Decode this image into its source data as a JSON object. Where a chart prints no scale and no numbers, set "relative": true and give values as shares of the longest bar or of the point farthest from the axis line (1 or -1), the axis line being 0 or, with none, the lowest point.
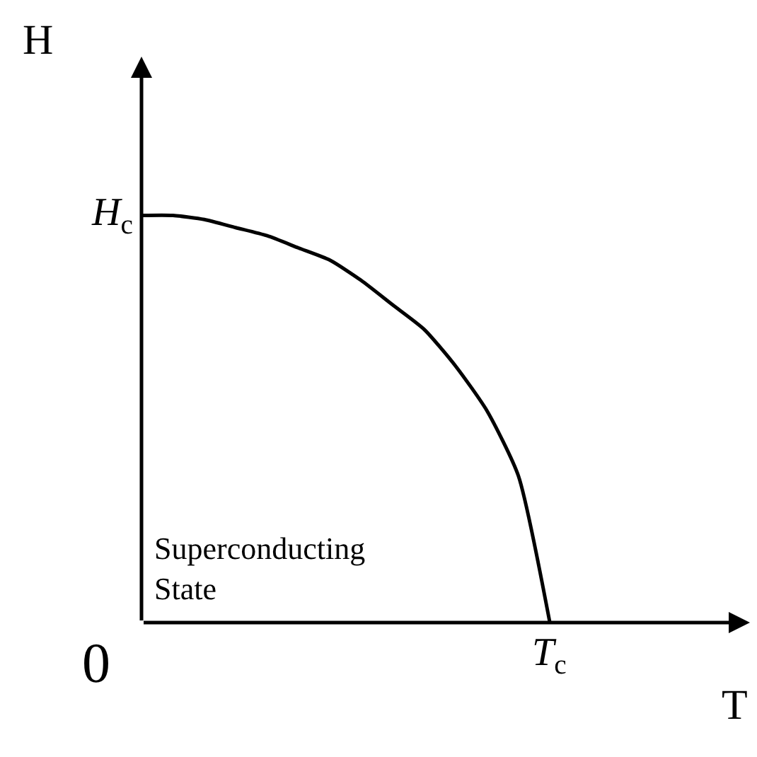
{
  "chart_data": {
    "type": "line",
    "xlabel": "T",
    "ylabel": "H",
    "relative": true,
    "categories": [
      null,
      null,
      null,
      null,
      null,
      null,
      null,
      null,
      null,
      null,
      null,
      null,
      null,
      null
    ],
    "values": [
      1.0,
      1.0,
      0.99,
      0.97,
      0.95,
      0.92,
      0.89,
      0.84,
      0.78,
      0.72,
      0.63,
      0.52,
      0.36,
      0.0
    ],
    "color": "#000000",
    "marker": "none",
    "line_style": "solid",
    "annotations": [
      "0",
      "T$_{c}$",
      "H$_{c}$",
      "Superconducting\nState"
    ]
  }
}
